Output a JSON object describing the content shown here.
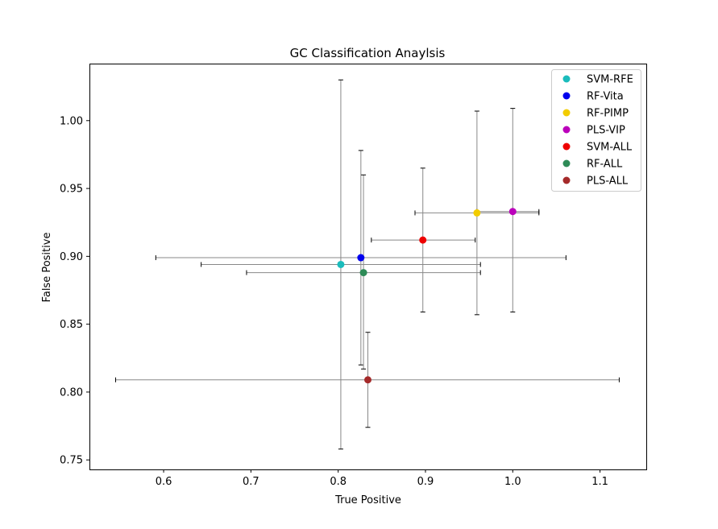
{
  "chart_data": {
    "type": "scatter",
    "title": "GC Classification Anaylsis",
    "xlabel": "True Positive",
    "ylabel": "False Positive",
    "xlim": [
      0.515,
      1.153
    ],
    "ylim": [
      0.743,
      1.042
    ],
    "xticks": [
      "0.6",
      "0.7",
      "0.8",
      "0.9",
      "1.0",
      "1.1"
    ],
    "yticks": [
      "0.75",
      "0.80",
      "0.85",
      "0.90",
      "0.95",
      "1.00"
    ],
    "legend_position": "top-right",
    "grid": false,
    "series": [
      {
        "name": "SVM-RFE",
        "color": "#1bbcbc",
        "x": 0.803,
        "y": 0.894,
        "xerr": [
          0.643,
          0.963
        ],
        "yerr": [
          0.758,
          1.03
        ]
      },
      {
        "name": "RF-Vita",
        "color": "#0000ee",
        "x": 0.826,
        "y": 0.899,
        "xerr": [
          0.591,
          1.061
        ],
        "yerr": [
          0.82,
          0.978
        ]
      },
      {
        "name": "RF-PIMP",
        "color": "#f2cc00",
        "x": 0.959,
        "y": 0.932,
        "xerr": [
          0.888,
          1.03
        ],
        "yerr": [
          0.857,
          1.007
        ]
      },
      {
        "name": "PLS-VIP",
        "color": "#bb00bb",
        "x": 1.0,
        "y": 0.933,
        "xerr": [
          0.959,
          1.03
        ],
        "yerr": [
          0.859,
          1.009
        ]
      },
      {
        "name": "SVM-ALL",
        "color": "#ee0000",
        "x": 0.897,
        "y": 0.912,
        "xerr": [
          0.838,
          0.957
        ],
        "yerr": [
          0.859,
          0.965
        ]
      },
      {
        "name": "RF-ALL",
        "color": "#2e8b57",
        "x": 0.829,
        "y": 0.888,
        "xerr": [
          0.695,
          0.963
        ],
        "yerr": [
          0.817,
          0.96
        ]
      },
      {
        "name": "PLS-ALL",
        "color": "#a52a2a",
        "x": 0.834,
        "y": 0.809,
        "xerr": [
          0.545,
          1.122
        ],
        "yerr": [
          0.774,
          0.844
        ]
      }
    ]
  }
}
